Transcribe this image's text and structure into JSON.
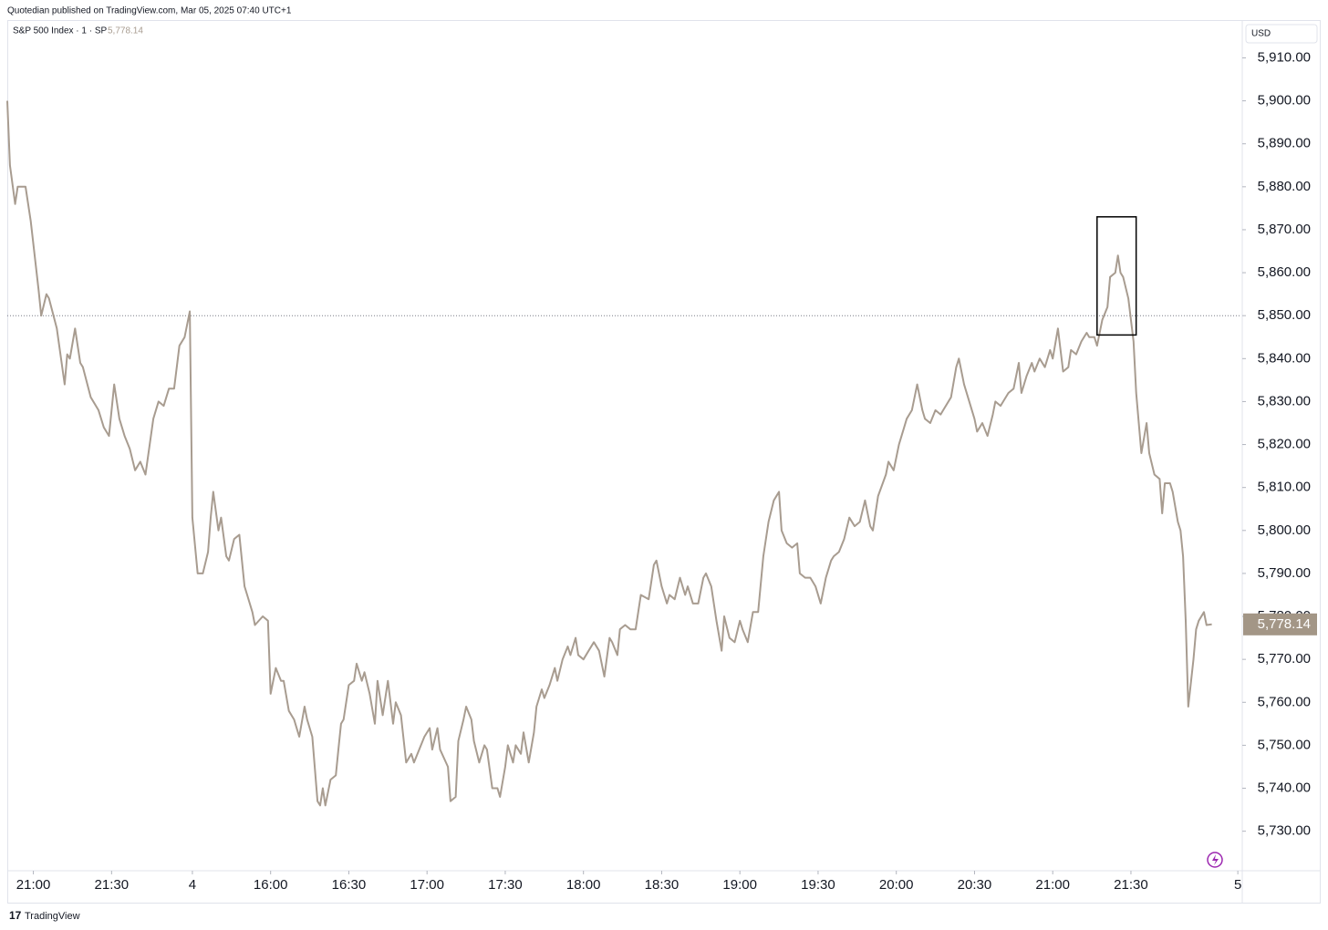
{
  "header": "Quotedian published on TradingView.com, Mar 05, 2025 07:40 UTC+1",
  "footer": "TradingView",
  "chart_data": {
    "type": "line",
    "title": "S&P 500 Index · 1 · SP",
    "last_label": "5,778.14",
    "currency": "USD",
    "color": "#a89c90",
    "reference_line": 5850,
    "highlight_box": {
      "x": [
        418,
        433
      ],
      "y": [
        5845.5,
        5873
      ]
    },
    "x": [
      0,
      1,
      3,
      4,
      7,
      9,
      12,
      13,
      15,
      16,
      19,
      22,
      23,
      24,
      26,
      28,
      29,
      32,
      35,
      37,
      39,
      41,
      43,
      45,
      47,
      49,
      51,
      53,
      56,
      58,
      60,
      62,
      64,
      66,
      68,
      70,
      71,
      73,
      75,
      77,
      78,
      79,
      81,
      82,
      84,
      85,
      87,
      89,
      91,
      92,
      94,
      95,
      98,
      100,
      101,
      103,
      105,
      106,
      108,
      110,
      112,
      114,
      115,
      117,
      119,
      120,
      121,
      122,
      124,
      126,
      127,
      128,
      129,
      131,
      133,
      134,
      136,
      137,
      139,
      141,
      142,
      144,
      146,
      148,
      149,
      151,
      153,
      155,
      156,
      158,
      160,
      162,
      163,
      165,
      166,
      169,
      170,
      172,
      173,
      175,
      176,
      178,
      179,
      181,
      183,
      184,
      186,
      188,
      189,
      191,
      192,
      194,
      195,
      197,
      198,
      200,
      202,
      203,
      205,
      206,
      208,
      210,
      211,
      213,
      215,
      216,
      218,
      219,
      221,
      223,
      225,
      227,
      229,
      231,
      232,
      234,
      235,
      237,
      239,
      241,
      243,
      246,
      248,
      249,
      251,
      253,
      254,
      256,
      258,
      260,
      261,
      263,
      265,
      267,
      268,
      270,
      272,
      274,
      275,
      277,
      279,
      281,
      282,
      284,
      286,
      288,
      290,
      292,
      294,
      296,
      297,
      299,
      301,
      303,
      304,
      306,
      308,
      310,
      312,
      314,
      316,
      317,
      319,
      321,
      323,
      325,
      327,
      329,
      331,
      332,
      334,
      337,
      338,
      340,
      342,
      344,
      345,
      347,
      349,
      351,
      352,
      354,
      356,
      358,
      359,
      362,
      364,
      365,
      367,
      369,
      371,
      372,
      374,
      376,
      378,
      379,
      381,
      384,
      386,
      388,
      389,
      391,
      393,
      394,
      396,
      398,
      400,
      401,
      403,
      405,
      407,
      408,
      410,
      412,
      414,
      415,
      417,
      418,
      420,
      422,
      423,
      425,
      426,
      427,
      428,
      430,
      432,
      433,
      435,
      437,
      438,
      440,
      442,
      443,
      444,
      446,
      447,
      449,
      450,
      451,
      452,
      453,
      455,
      456,
      457,
      459,
      460,
      462
    ],
    "values": [
      5900,
      5885,
      5876,
      5880,
      5880,
      5872,
      5856,
      5850,
      5855,
      5854,
      5847,
      5834,
      5841,
      5840,
      5847,
      5839,
      5838,
      5831,
      5828,
      5824,
      5822,
      5834,
      5826,
      5822,
      5819,
      5814,
      5816,
      5813,
      5826,
      5830,
      5829,
      5833,
      5833,
      5843,
      5845,
      5851,
      5803,
      5790,
      5790,
      5795,
      5803,
      5809,
      5800,
      5803,
      5794,
      5793,
      5798,
      5799,
      5787,
      5785,
      5781,
      5778,
      5780,
      5779,
      5762,
      5768,
      5765,
      5765,
      5758,
      5756,
      5752,
      5759,
      5756,
      5752,
      5737,
      5736,
      5740,
      5736,
      5742,
      5743,
      5749,
      5755,
      5756,
      5764,
      5765,
      5769,
      5765,
      5767,
      5762,
      5755,
      5765,
      5757,
      5765,
      5755,
      5760,
      5757,
      5746,
      5748,
      5746,
      5749,
      5752,
      5754,
      5749,
      5754,
      5749,
      5745,
      5737,
      5738,
      5751,
      5756,
      5759,
      5756,
      5751,
      5746,
      5750,
      5749,
      5740,
      5740,
      5738,
      5745,
      5750,
      5746,
      5750,
      5748,
      5753,
      5746,
      5753,
      5759,
      5763,
      5761,
      5764,
      5768,
      5765,
      5770,
      5773,
      5771,
      5775,
      5771,
      5770,
      5772,
      5774,
      5772,
      5766,
      5775,
      5774,
      5771,
      5777,
      5778,
      5777,
      5777,
      5785,
      5784,
      5792,
      5793,
      5787,
      5783,
      5785,
      5784,
      5789,
      5785,
      5787,
      5783,
      5783,
      5789,
      5790,
      5787,
      5779,
      5772,
      5780,
      5775,
      5774,
      5779,
      5777,
      5774,
      5781,
      5781,
      5794,
      5802,
      5807,
      5809,
      5800,
      5797,
      5796,
      5797,
      5790,
      5789,
      5789,
      5787,
      5783,
      5789,
      5793,
      5794,
      5795,
      5798,
      5803,
      5801,
      5802,
      5807,
      5801,
      5800,
      5808,
      5813,
      5816,
      5814,
      5820,
      5824,
      5826,
      5828,
      5834,
      5828,
      5826,
      5825,
      5828,
      5827,
      5828,
      5831,
      5838,
      5840,
      5834,
      5830,
      5826,
      5823,
      5825,
      5822,
      5827,
      5830,
      5829,
      5832,
      5833,
      5839,
      5832,
      5836,
      5839,
      5837,
      5840,
      5838,
      5842,
      5840,
      5847,
      5837,
      5838,
      5842,
      5841,
      5844,
      5846,
      5845,
      5845,
      5843,
      5849,
      5852,
      5859,
      5860,
      5864,
      5860,
      5859,
      5854,
      5844,
      5832,
      5818,
      5825,
      5818,
      5813,
      5812,
      5804,
      5811,
      5811,
      5809,
      5802,
      5800,
      5794,
      5779,
      5759,
      5770,
      5777,
      5779,
      5781,
      5778,
      5778.14
    ],
    "xlim": [
      0,
      473
    ],
    "xticks": [
      {
        "value": 10,
        "label": "21:00"
      },
      {
        "value": 40,
        "label": "21:30"
      },
      {
        "value": 71,
        "label": "4"
      },
      {
        "value": 101,
        "label": "16:00"
      },
      {
        "value": 131,
        "label": "16:30"
      },
      {
        "value": 161,
        "label": "17:00"
      },
      {
        "value": 191,
        "label": "17:30"
      },
      {
        "value": 221,
        "label": "18:00"
      },
      {
        "value": 251,
        "label": "18:30"
      },
      {
        "value": 281,
        "label": "19:00"
      },
      {
        "value": 311,
        "label": "19:30"
      },
      {
        "value": 341,
        "label": "20:00"
      },
      {
        "value": 371,
        "label": "20:30"
      },
      {
        "value": 401,
        "label": "21:00"
      },
      {
        "value": 431,
        "label": "21:30"
      },
      {
        "value": 472,
        "label": "5"
      }
    ],
    "ylim": [
      5720.8,
      5918.8
    ],
    "yticks": [
      {
        "value": 5730,
        "label": "5,730.00"
      },
      {
        "value": 5740,
        "label": "5,740.00"
      },
      {
        "value": 5750,
        "label": "5,750.00"
      },
      {
        "value": 5760,
        "label": "5,760.00"
      },
      {
        "value": 5770,
        "label": "5,770.00"
      },
      {
        "value": 5780,
        "label": "5,780.00"
      },
      {
        "value": 5790,
        "label": "5,790.00"
      },
      {
        "value": 5800,
        "label": "5,800.00"
      },
      {
        "value": 5810,
        "label": "5,810.00"
      },
      {
        "value": 5820,
        "label": "5,820.00"
      },
      {
        "value": 5830,
        "label": "5,830.00"
      },
      {
        "value": 5840,
        "label": "5,840.00"
      },
      {
        "value": 5850,
        "label": "5,850.00"
      },
      {
        "value": 5860,
        "label": "5,860.00"
      },
      {
        "value": 5870,
        "label": "5,870.00"
      },
      {
        "value": 5880,
        "label": "5,880.00"
      },
      {
        "value": 5890,
        "label": "5,890.00"
      },
      {
        "value": 5900,
        "label": "5,900.00"
      },
      {
        "value": 5910,
        "label": "5,910.00"
      }
    ]
  }
}
